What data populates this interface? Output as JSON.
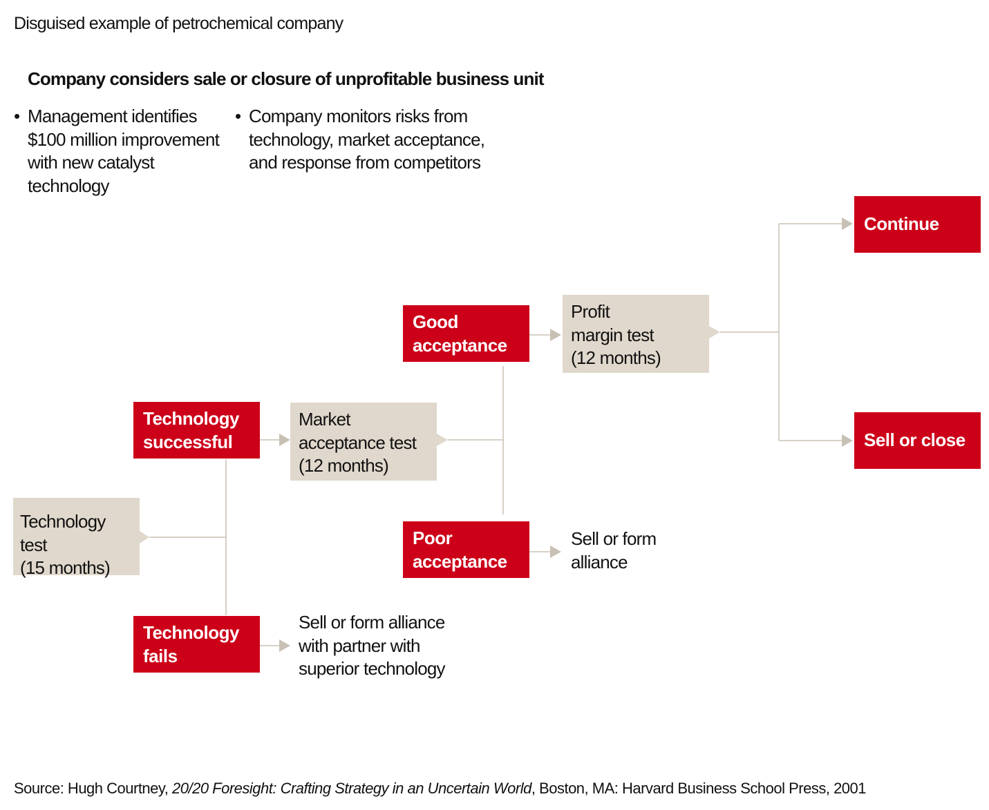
{
  "subtitle": "Disguised example of petrochemical company",
  "heading": "Company considers sale or closure of unprofitable business unit",
  "bullets": [
    "Management identifies\n$100 million improvement\nwith new catalyst\ntechnology",
    "Company monitors risks from\ntechnology, market acceptance,\nand response from competitors"
  ],
  "nodes": {
    "technology_test": "Technology test\n(15 months)",
    "technology_successful": "Technology\nsuccessful",
    "technology_fails": "Technology\nfails",
    "market_test": "Market\nacceptance test\n(12 months)",
    "good_acceptance": "Good\nacceptance",
    "poor_acceptance": "Poor\nacceptance",
    "profit_test": "Profit\nmargin test\n(12 months)",
    "continue": "Continue",
    "sell_or_close": "Sell or close",
    "poor_outcome": "Sell or form\nalliance",
    "fail_outcome": "Sell or form alliance\nwith partner with\nsuperior technology"
  },
  "source": {
    "prefix": "Source: Hugh Courtney, ",
    "title": "20/20 Foresight: Crafting Strategy in an Uncertain World",
    "suffix": ", Boston, MA: Harvard Business School Press, 2001"
  },
  "colors": {
    "outcome": "#cc0018",
    "test": "#e0d8cc",
    "connector": "#c8c0b4"
  }
}
